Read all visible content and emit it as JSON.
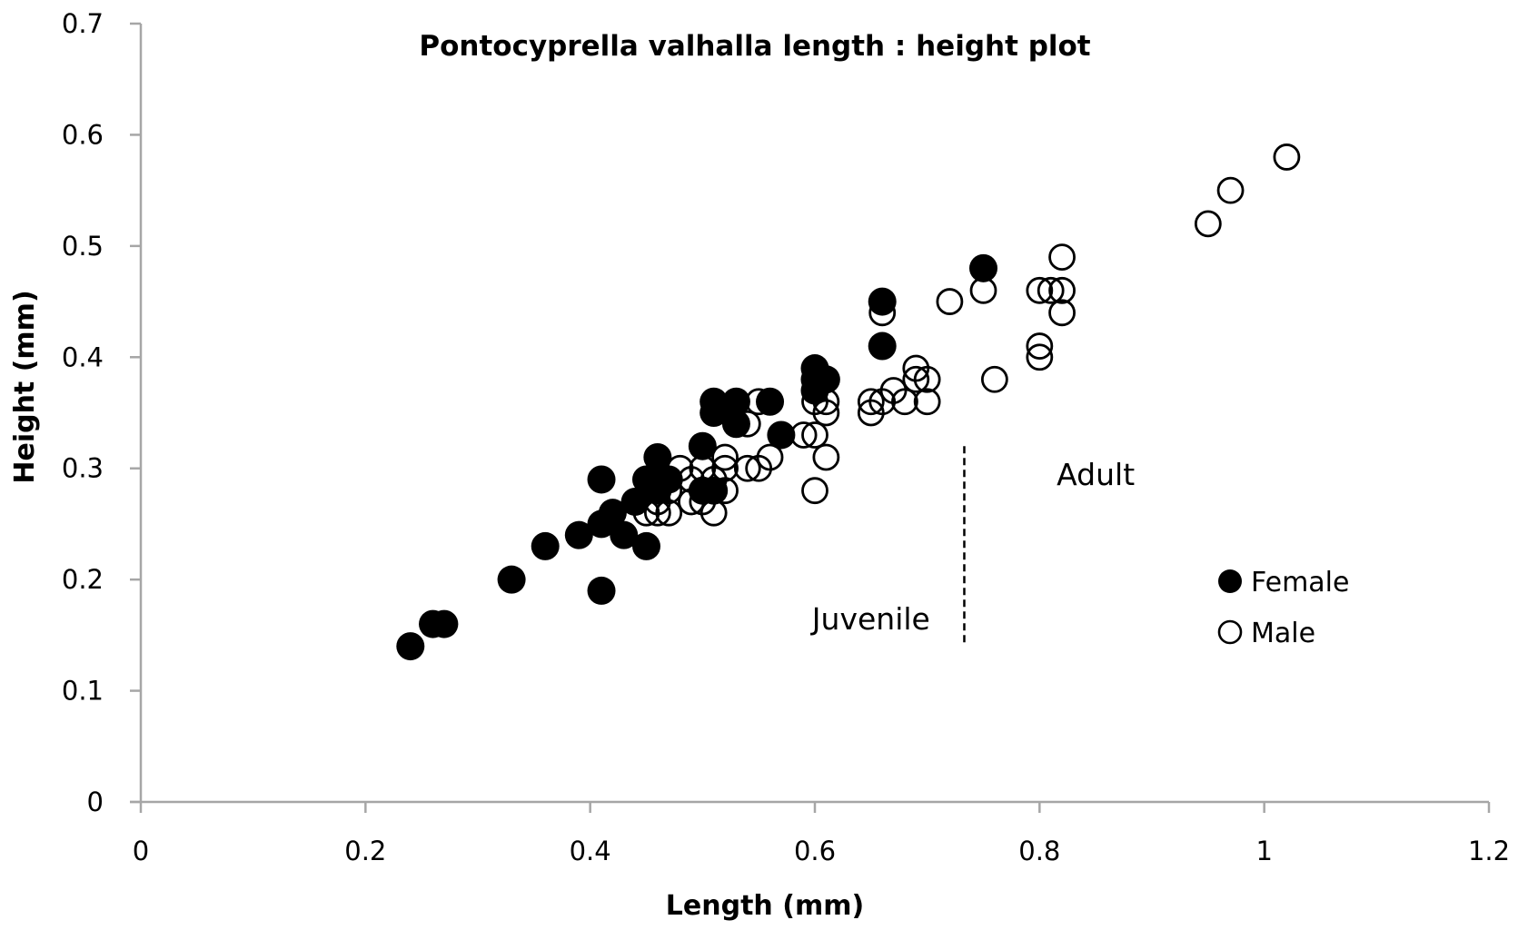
{
  "chart_data": {
    "type": "scatter",
    "title": "Pontocyprella valhalla  length : height plot",
    "xlabel": "Length (mm)",
    "ylabel": "Height (mm)",
    "xlim": [
      0,
      1.2
    ],
    "ylim": [
      0,
      0.7
    ],
    "xticks": [
      "0",
      "0.2",
      "0.4",
      "0.6",
      "0.8",
      "1",
      "1.2"
    ],
    "xtick_values": [
      0,
      0.2,
      0.4,
      0.6,
      0.8,
      1.0,
      1.2
    ],
    "yticks": [
      "0",
      "0.1",
      "0.2",
      "0.3",
      "0.4",
      "0.5",
      "0.6",
      "0.7"
    ],
    "ytick_values": [
      0,
      0.1,
      0.2,
      0.3,
      0.4,
      0.5,
      0.6,
      0.7
    ],
    "grid": false,
    "legend_position": "right-center",
    "colors": {
      "marker": "#000000",
      "axis": "#a6a6a6",
      "background": "#ffffff"
    },
    "series": [
      {
        "name": "Female",
        "marker": "filled-circle",
        "points": [
          [
            0.24,
            0.14
          ],
          [
            0.26,
            0.16
          ],
          [
            0.27,
            0.16
          ],
          [
            0.33,
            0.2
          ],
          [
            0.36,
            0.23
          ],
          [
            0.39,
            0.24
          ],
          [
            0.41,
            0.19
          ],
          [
            0.41,
            0.25
          ],
          [
            0.41,
            0.29
          ],
          [
            0.42,
            0.26
          ],
          [
            0.43,
            0.24
          ],
          [
            0.44,
            0.27
          ],
          [
            0.45,
            0.23
          ],
          [
            0.45,
            0.29
          ],
          [
            0.46,
            0.28
          ],
          [
            0.46,
            0.31
          ],
          [
            0.47,
            0.29
          ],
          [
            0.5,
            0.32
          ],
          [
            0.5,
            0.28
          ],
          [
            0.51,
            0.28
          ],
          [
            0.51,
            0.35
          ],
          [
            0.51,
            0.36
          ],
          [
            0.53,
            0.34
          ],
          [
            0.53,
            0.36
          ],
          [
            0.56,
            0.36
          ],
          [
            0.57,
            0.33
          ],
          [
            0.6,
            0.37
          ],
          [
            0.6,
            0.38
          ],
          [
            0.6,
            0.39
          ],
          [
            0.61,
            0.38
          ],
          [
            0.66,
            0.41
          ],
          [
            0.66,
            0.45
          ],
          [
            0.75,
            0.48
          ]
        ]
      },
      {
        "name": "Male",
        "marker": "open-circle",
        "points": [
          [
            0.45,
            0.26
          ],
          [
            0.46,
            0.26
          ],
          [
            0.46,
            0.27
          ],
          [
            0.47,
            0.26
          ],
          [
            0.47,
            0.28
          ],
          [
            0.48,
            0.3
          ],
          [
            0.49,
            0.27
          ],
          [
            0.49,
            0.29
          ],
          [
            0.5,
            0.27
          ],
          [
            0.5,
            0.3
          ],
          [
            0.51,
            0.26
          ],
          [
            0.51,
            0.29
          ],
          [
            0.52,
            0.28
          ],
          [
            0.52,
            0.3
          ],
          [
            0.52,
            0.31
          ],
          [
            0.54,
            0.3
          ],
          [
            0.54,
            0.34
          ],
          [
            0.55,
            0.3
          ],
          [
            0.55,
            0.36
          ],
          [
            0.56,
            0.31
          ],
          [
            0.59,
            0.33
          ],
          [
            0.6,
            0.28
          ],
          [
            0.6,
            0.33
          ],
          [
            0.6,
            0.36
          ],
          [
            0.61,
            0.31
          ],
          [
            0.61,
            0.35
          ],
          [
            0.61,
            0.36
          ],
          [
            0.65,
            0.35
          ],
          [
            0.65,
            0.36
          ],
          [
            0.66,
            0.36
          ],
          [
            0.66,
            0.44
          ],
          [
            0.67,
            0.37
          ],
          [
            0.68,
            0.36
          ],
          [
            0.69,
            0.38
          ],
          [
            0.69,
            0.39
          ],
          [
            0.7,
            0.36
          ],
          [
            0.7,
            0.38
          ],
          [
            0.72,
            0.45
          ],
          [
            0.75,
            0.46
          ],
          [
            0.76,
            0.38
          ],
          [
            0.8,
            0.4
          ],
          [
            0.8,
            0.41
          ],
          [
            0.8,
            0.46
          ],
          [
            0.81,
            0.46
          ],
          [
            0.82,
            0.44
          ],
          [
            0.82,
            0.46
          ],
          [
            0.82,
            0.49
          ],
          [
            0.95,
            0.52
          ],
          [
            0.97,
            0.55
          ],
          [
            1.02,
            0.58
          ]
        ]
      }
    ],
    "annotations": [
      {
        "text": "Juvenile",
        "x": 0.65,
        "y": 0.165
      },
      {
        "text": "Adult",
        "x": 0.85,
        "y": 0.295
      }
    ],
    "divider": {
      "style": "dashed",
      "x": 0.733,
      "y_from": 0.14,
      "y_to": 0.32
    }
  }
}
